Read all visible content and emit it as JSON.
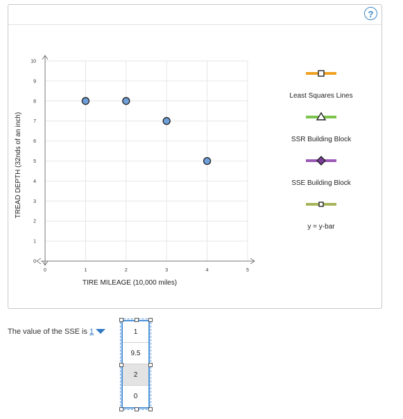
{
  "help_label": "?",
  "chart_data": {
    "type": "scatter",
    "xlabel": "TIRE MILEAGE (10,000 miles)",
    "ylabel": "TREAD DEPTH (32nds of an inch)",
    "xlim": [
      0,
      5
    ],
    "ylim": [
      0,
      10
    ],
    "x_ticks": [
      "0",
      "1",
      "2",
      "3",
      "4",
      "5"
    ],
    "y_ticks": [
      "0",
      "1",
      "2",
      "3",
      "4",
      "5",
      "6",
      "7",
      "8",
      "9",
      "10"
    ],
    "grid": true,
    "points": [
      {
        "x": 1,
        "y": 8
      },
      {
        "x": 2,
        "y": 8
      },
      {
        "x": 3,
        "y": 7
      },
      {
        "x": 4,
        "y": 5
      }
    ],
    "point_color": "#6f9fd8"
  },
  "legend": [
    {
      "label": "Least Squares Lines",
      "icon": "square-marker-line-icon",
      "color": "#f0a020",
      "marker_fill": "#ffffff"
    },
    {
      "label": "SSR Building Block",
      "icon": "triangle-marker-line-icon",
      "color": "#7cc44e",
      "marker_fill": "#ffffff"
    },
    {
      "label": "SSE Building Block",
      "icon": "diamond-marker-line-icon",
      "color": "#9b59b6",
      "marker_fill": "#7a3b99"
    },
    {
      "label": "y = y-bar",
      "icon": "square-marker-line-icon",
      "color": "#a8b45a",
      "marker_fill": "#ffffff"
    }
  ],
  "sse_prompt": {
    "text": "The value of the SSE is",
    "selected": "1",
    "options": [
      "1",
      "9.5",
      "2",
      "0"
    ],
    "highlighted_index": 2
  }
}
